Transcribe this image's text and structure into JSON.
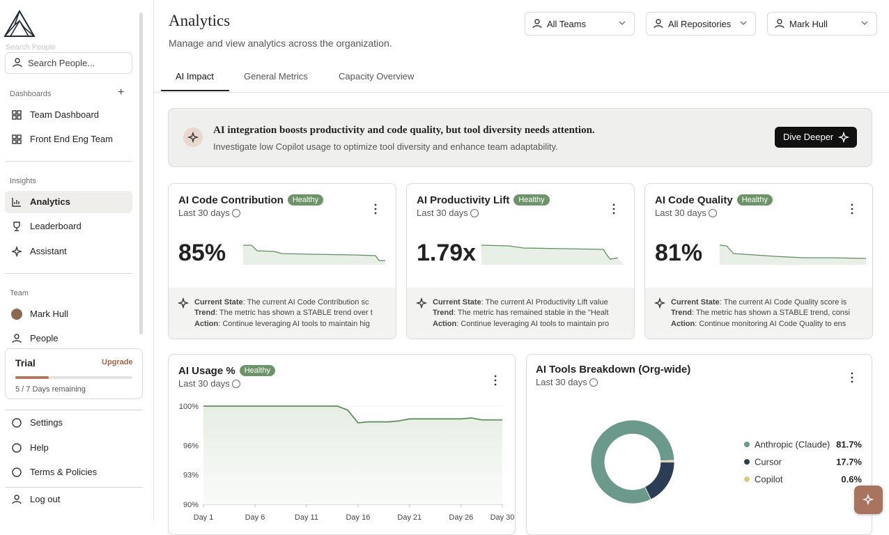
{
  "sidebar": {
    "search_label": "Search People",
    "search_placeholder": "Search People...",
    "dashboards_heading": "Dashboards",
    "dashboards": [
      "Team Dashboard",
      "Front End Eng Team"
    ],
    "insights_heading": "Insights",
    "insights": [
      "Analytics",
      "Leaderboard",
      "Assistant"
    ],
    "team_heading": "Team",
    "team": [
      "Mark Hull",
      "People"
    ],
    "trial": {
      "title": "Trial",
      "upgrade": "Upgrade",
      "remaining": "5 / 7 Days remaining"
    },
    "footer": [
      "Settings",
      "Help",
      "Terms & Policies"
    ],
    "logout": "Log out"
  },
  "header": {
    "title": "Analytics",
    "subtitle": "Manage and view analytics across the organization.",
    "filters": [
      "All Teams",
      "All Repositories",
      "Mark Hull"
    ]
  },
  "tabs": [
    "AI Impact",
    "General Metrics",
    "Capacity Overview"
  ],
  "banner": {
    "headline": "AI integration boosts productivity and code quality, but tool diversity needs attention.",
    "text": "Investigate low Copilot usage to optimize tool diversity and enhance team adaptability.",
    "button": "Dive Deeper"
  },
  "cards": [
    {
      "title": "AI Code Contribution",
      "badge": "Healthy",
      "period": "Last 30 days",
      "value": "85%",
      "state_label": "Current State",
      "state": ": The current AI Code Contribution sc",
      "trend_label": "Trend",
      "trend": ": The metric has shown a STABLE trend over t",
      "action_label": "Action",
      "action": ": Continue leveraging AI tools to maintain hig"
    },
    {
      "title": "AI Productivity Lift",
      "badge": "Healthy",
      "period": "Last 30 days",
      "value": "1.79x",
      "state_label": "Current State",
      "state": ": The current AI Productivity Lift value",
      "trend_label": "Trend",
      "trend": ": The metric has remained stable in the \"Healt",
      "action_label": "Action",
      "action": ": Continue leveraging AI tools to maintain pro"
    },
    {
      "title": "AI Code Quality",
      "badge": "Healthy",
      "period": "Last 30 days",
      "value": "81%",
      "state_label": "Current State",
      "state": ": The current AI Code Quality score is",
      "trend_label": "Trend",
      "trend": ": The metric has shown a STABLE trend, consi",
      "action_label": "Action",
      "action": ": Continue monitoring AI Code Quality to ens"
    }
  ],
  "chart_data": [
    {
      "type": "line",
      "title": "AI Usage %",
      "badge": "Healthy",
      "subtitle": "Last 30 days",
      "categories": [
        "Day 1",
        null,
        null,
        null,
        null,
        "Day 6",
        null,
        null,
        null,
        null,
        "Day 11",
        null,
        null,
        null,
        null,
        "Day 16",
        null,
        null,
        null,
        null,
        "Day 21",
        null,
        null,
        null,
        null,
        "Day 26",
        null,
        null,
        null,
        "Day 30"
      ],
      "series": [
        {
          "name": "AI Usage %",
          "color": "#5f8f5f",
          "values": [
            100,
            100,
            100,
            100,
            100,
            100,
            100,
            100,
            100,
            100,
            100,
            100,
            100,
            100,
            99.6,
            98.3,
            98.4,
            98.4,
            98.4,
            98.5,
            98.7,
            98.7,
            98.7,
            98.7,
            98.7,
            98.7,
            98.8,
            98.6,
            98.6,
            98.6
          ]
        }
      ],
      "ylim": [
        90,
        100
      ],
      "yticks": [
        {
          "value": 90,
          "label": "90%"
        },
        {
          "value": 93,
          "label": "93%"
        },
        {
          "value": 96,
          "label": "96%"
        },
        {
          "value": 100,
          "label": "100%"
        }
      ]
    },
    {
      "type": "pie",
      "title": "AI Tools Breakdown (Org-wide)",
      "subtitle": "Last 30 days",
      "categories": [
        "Anthropic (Claude)",
        "Cursor",
        "Copilot"
      ],
      "values": [
        81.7,
        17.7,
        0.6
      ],
      "value_labels": [
        "81.7%",
        "17.7%",
        "0.6%"
      ],
      "colors": [
        "#6b9a8c",
        "#2c3e55",
        "#e2c77c"
      ]
    }
  ]
}
